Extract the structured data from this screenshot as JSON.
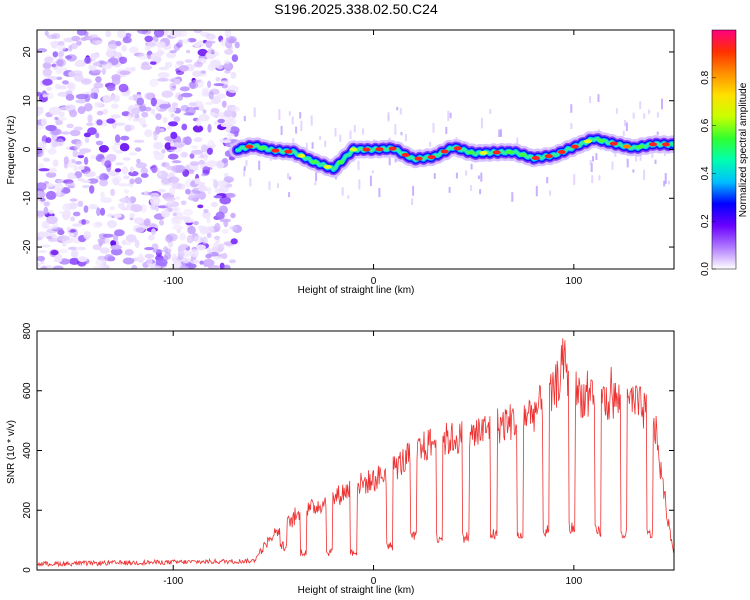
{
  "title": "S196.2025.338.02.50.C24",
  "chart_data": [
    {
      "type": "heatmap",
      "name": "spectrogram",
      "xlabel": "Height of straight line (km)",
      "ylabel": "Frequency (Hz)",
      "xlim": [
        -168,
        150
      ],
      "ylim": [
        -24.5,
        24.5
      ],
      "xticks": [
        -100,
        0,
        100
      ],
      "yticks": [
        -20,
        -10,
        0,
        10,
        20
      ],
      "noise_region_x": [
        -168,
        -68
      ],
      "ridge": {
        "x": [
          -68,
          -60,
          -50,
          -40,
          -30,
          -20,
          -10,
          0,
          10,
          20,
          30,
          40,
          50,
          60,
          70,
          80,
          90,
          100,
          110,
          120,
          130,
          140,
          150
        ],
        "y": [
          0,
          0.8,
          -0.2,
          -0.5,
          -2.5,
          -4,
          0,
          0,
          0.2,
          -2,
          -1.5,
          0.5,
          -0.8,
          -0.6,
          -0.5,
          -1.8,
          -1.2,
          0.5,
          2.2,
          1.2,
          0.3,
          1.1,
          1
        ]
      },
      "colorbar": {
        "label": "Normalized spectral amplitude",
        "range": [
          0,
          1
        ],
        "ticks": [
          "0.0",
          "0.2",
          "0.4",
          "0.6",
          "0.8"
        ],
        "tick_values": [
          0.0,
          0.2,
          0.4,
          0.6,
          0.8
        ],
        "colors": [
          "#ffffff",
          "#b07aff",
          "#6a00ff",
          "#0000ff",
          "#00bfff",
          "#00ffb0",
          "#30ff30",
          "#c8ff00",
          "#ffe000",
          "#ff9000",
          "#ff3000",
          "#ff0080"
        ]
      }
    },
    {
      "type": "line",
      "name": "snr",
      "xlabel": "Height of straight line (km)",
      "ylabel": "SNR (10 * v/v)",
      "xlim": [
        -168,
        150
      ],
      "ylim": [
        0,
        800
      ],
      "xticks": [
        -100,
        0,
        100
      ],
      "yticks": [
        0,
        200,
        400,
        600,
        800
      ],
      "color": "#ee3030",
      "envelope": {
        "x": [
          -168,
          -60,
          -50,
          -40,
          -30,
          -20,
          -10,
          0,
          10,
          20,
          30,
          40,
          50,
          60,
          70,
          80,
          90,
          95,
          100,
          110,
          120,
          130,
          140,
          145,
          150
        ],
        "y": [
          20,
          30,
          120,
          170,
          210,
          240,
          280,
          300,
          340,
          390,
          430,
          440,
          450,
          480,
          500,
          530,
          590,
          700,
          600,
          560,
          570,
          560,
          510,
          250,
          50
        ]
      },
      "dip_centers": [
        -45,
        -35,
        -22,
        -10,
        8,
        20,
        33,
        46,
        60,
        73,
        86,
        99,
        112,
        125,
        138
      ],
      "dip_values": [
        80,
        60,
        60,
        60,
        80,
        110,
        110,
        110,
        120,
        110,
        130,
        140,
        130,
        120,
        120
      ]
    }
  ]
}
